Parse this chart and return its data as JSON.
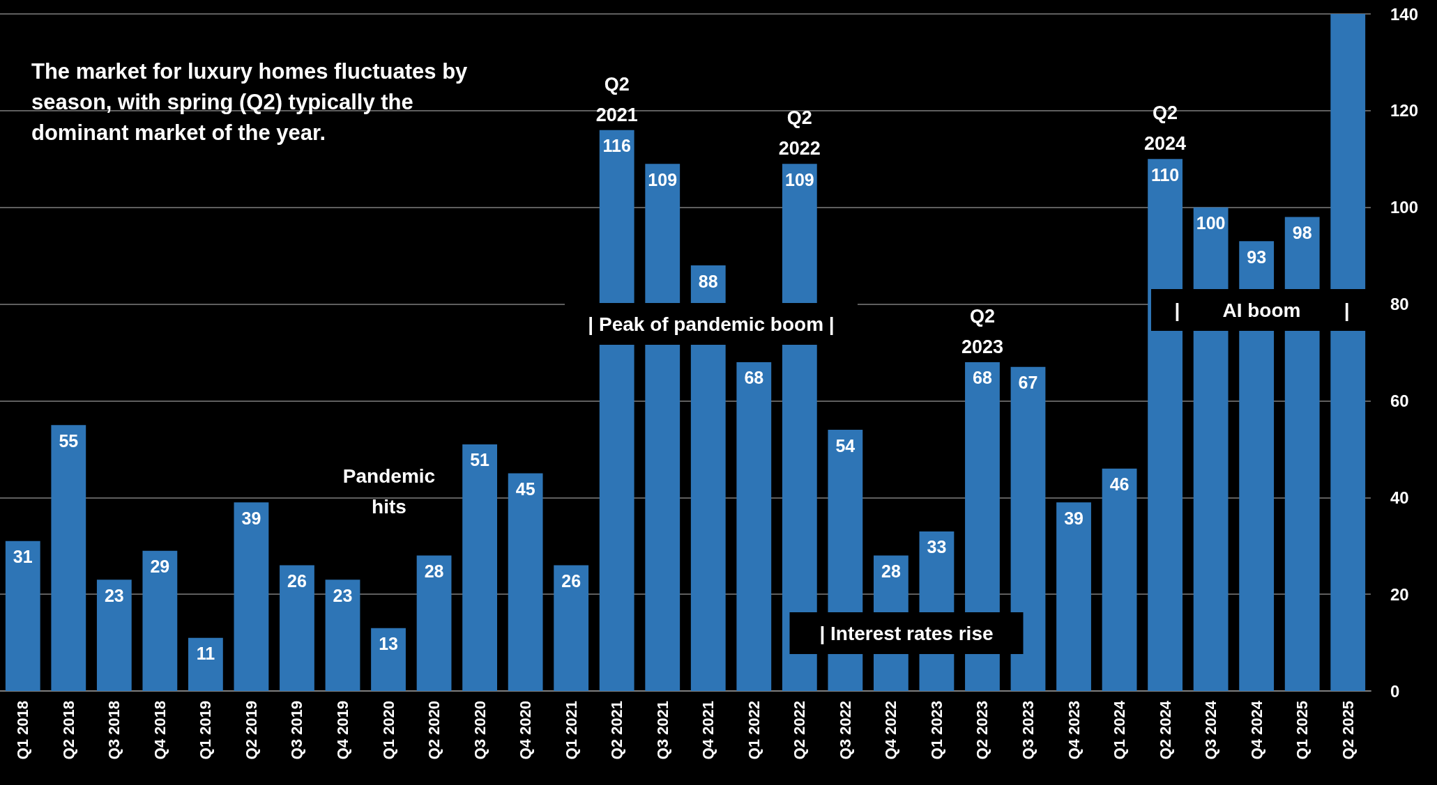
{
  "chart_data": {
    "type": "bar",
    "categories": [
      "Q1 2018",
      "Q2 2018",
      "Q3 2018",
      "Q4 2018",
      "Q1 2019",
      "Q2 2019",
      "Q3 2019",
      "Q4 2019",
      "Q1 2020",
      "Q2 2020",
      "Q3 2020",
      "Q4 2020",
      "Q1 2021",
      "Q2 2021",
      "Q3 2021",
      "Q4 2021",
      "Q1 2022",
      "Q2 2022",
      "Q3 2022",
      "Q4 2022",
      "Q1 2023",
      "Q2 2023",
      "Q3 2023",
      "Q4 2023",
      "Q1 2024",
      "Q2 2024",
      "Q3 2024",
      "Q4 2024",
      "Q1 2025",
      "Q2 2025"
    ],
    "values": [
      31,
      55,
      23,
      29,
      11,
      39,
      26,
      23,
      13,
      28,
      51,
      45,
      26,
      116,
      109,
      88,
      68,
      109,
      54,
      28,
      33,
      68,
      67,
      39,
      46,
      110,
      100,
      93,
      98,
      140
    ],
    "value_labels": [
      "31",
      "55",
      "23",
      "29",
      "11",
      "39",
      "26",
      "23",
      "13",
      "28",
      "51",
      "45",
      "26",
      "116",
      "109",
      "88",
      "68",
      "109",
      "54",
      "28",
      "33",
      "68",
      "67",
      "39",
      "46",
      "110",
      "100",
      "93",
      "98",
      null
    ],
    "color": "#2e75b6",
    "ylim": [
      0,
      140
    ],
    "yticks": [
      0,
      20,
      40,
      60,
      80,
      100,
      120,
      140
    ],
    "grid": "y",
    "annotations": [
      "The market for luxury homes fluctuates by season, with spring (Q2) typically the dominant market of the year.",
      {
        "text": "Q2\n2021",
        "x": "Q2 2021",
        "y": 116
      },
      {
        "text": "Q2\n2022",
        "x": "Q2 2022",
        "y": 109
      },
      {
        "text": "Q2\n2023",
        "x": "Q2 2023",
        "y": 68
      },
      {
        "text": "Q2\n2024",
        "x": "Q2 2024",
        "y": 110
      },
      "Pandemic\nhits",
      "| Peak of pandemic boom |",
      "| Interest rates rise",
      "|        AI boom        |"
    ]
  }
}
